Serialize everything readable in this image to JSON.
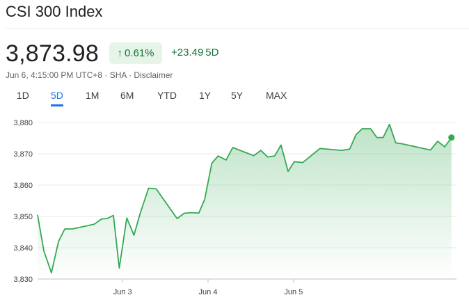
{
  "header": {
    "title": "CSI 300 Index"
  },
  "quote": {
    "price": "3,873.98",
    "change_pct": "0.61%",
    "arrow": "↑",
    "change_abs": "+23.49",
    "change_period": "5D",
    "meta": "Jun 6, 4:15:00 PM UTC+8 · SHA · Disclaimer"
  },
  "tabs": [
    {
      "label": "1D",
      "active": false
    },
    {
      "label": "5D",
      "active": true
    },
    {
      "label": "1M",
      "active": false
    },
    {
      "label": "6M",
      "active": false
    },
    {
      "label": "YTD",
      "active": false
    },
    {
      "label": "1Y",
      "active": false
    },
    {
      "label": "5Y",
      "active": false
    },
    {
      "label": "MAX",
      "active": false
    }
  ],
  "colors": {
    "line": "#34a853",
    "positive": "#137333",
    "accent": "#1a73e8"
  },
  "chart_data": {
    "type": "area",
    "title": "",
    "xlabel": "",
    "ylabel": "",
    "ylim": [
      3830,
      3880
    ],
    "xlim": [
      0,
      100
    ],
    "y_ticks": [
      "3,880",
      "3,870",
      "3,860",
      "3,850",
      "3,840",
      "3,830"
    ],
    "y_tick_values": [
      3880,
      3870,
      3860,
      3850,
      3840,
      3830
    ],
    "x_ticks": [
      {
        "label": "Jun 3",
        "x": 20.3
      },
      {
        "label": "Jun 4",
        "x": 40.7
      },
      {
        "label": "Jun 5",
        "x": 61.1
      }
    ],
    "grid": true,
    "series": [
      {
        "x": [
          0,
          1.5,
          3.3,
          5.0,
          6.5,
          8.3,
          13.5,
          15.3,
          16.6,
          18.1,
          19.5,
          21.3,
          23.0,
          24.5,
          26.5,
          28.3,
          33.3,
          35.0,
          36.6,
          38.5,
          39.9,
          41.6,
          43.1,
          45.0,
          46.6,
          51.6,
          53.3,
          54.9,
          56.6,
          58.1,
          59.8,
          61.3,
          63.3,
          67.4,
          72.6,
          74.5,
          76.0,
          77.5,
          79.5,
          81.0,
          82.5,
          84.0,
          85.5,
          87.0,
          93.8,
          95.5,
          97.2,
          98.8
        ],
        "values": [
          3850.5,
          3839,
          3832,
          3842,
          3846,
          3846,
          3847.5,
          3849.2,
          3849.3,
          3850.3,
          3833.5,
          3849.5,
          3844,
          3851,
          3859,
          3858.8,
          3849.3,
          3851,
          3851.2,
          3851.1,
          3855.5,
          3867,
          3869.3,
          3868,
          3872,
          3869.4,
          3871.1,
          3869,
          3869.3,
          3872.8,
          3864.4,
          3867.5,
          3867.2,
          3871.7,
          3871.1,
          3871.5,
          3876.1,
          3878,
          3878,
          3875.2,
          3875.2,
          3879.4,
          3873.5,
          3873.2,
          3871.2,
          3874,
          3872.2,
          3875.2
        ]
      }
    ]
  }
}
